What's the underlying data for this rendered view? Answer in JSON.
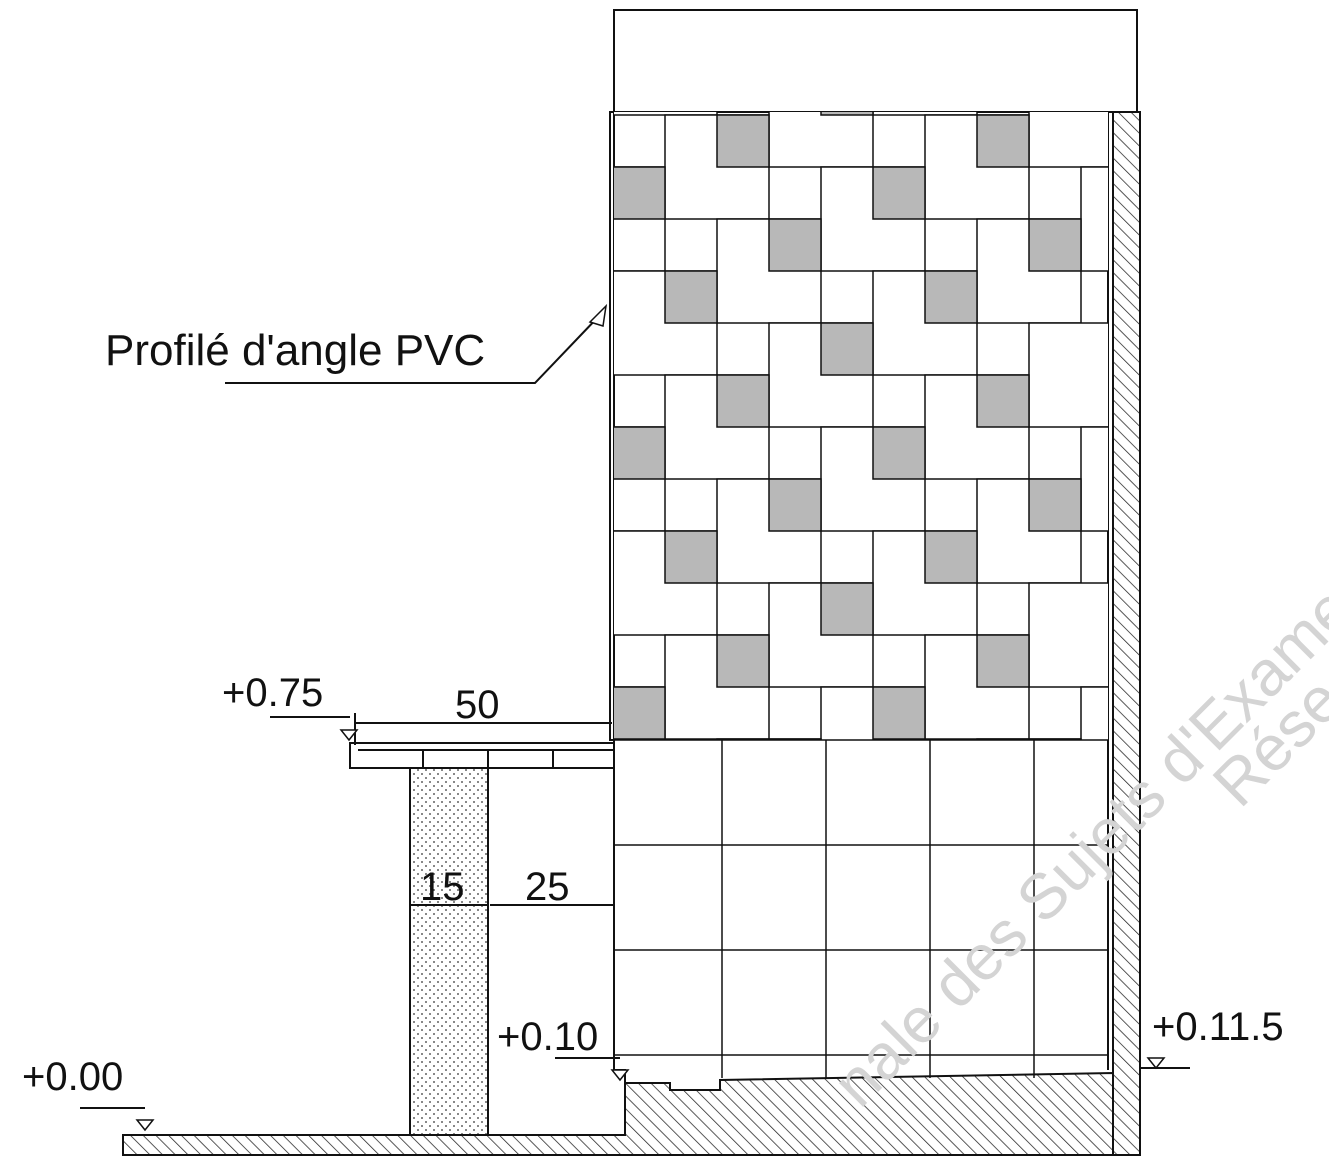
{
  "labels": {
    "profile": "Profilé d'angle PVC",
    "level_075": "+0.75",
    "dim_50": "50",
    "dim_15": "15",
    "dim_25": "25",
    "level_010": "+0.10",
    "level_000": "+0.00",
    "level_0115": "+0.11.5"
  },
  "watermark": {
    "line1": "nale des Sujets d'Exame",
    "line2": "Rése"
  }
}
